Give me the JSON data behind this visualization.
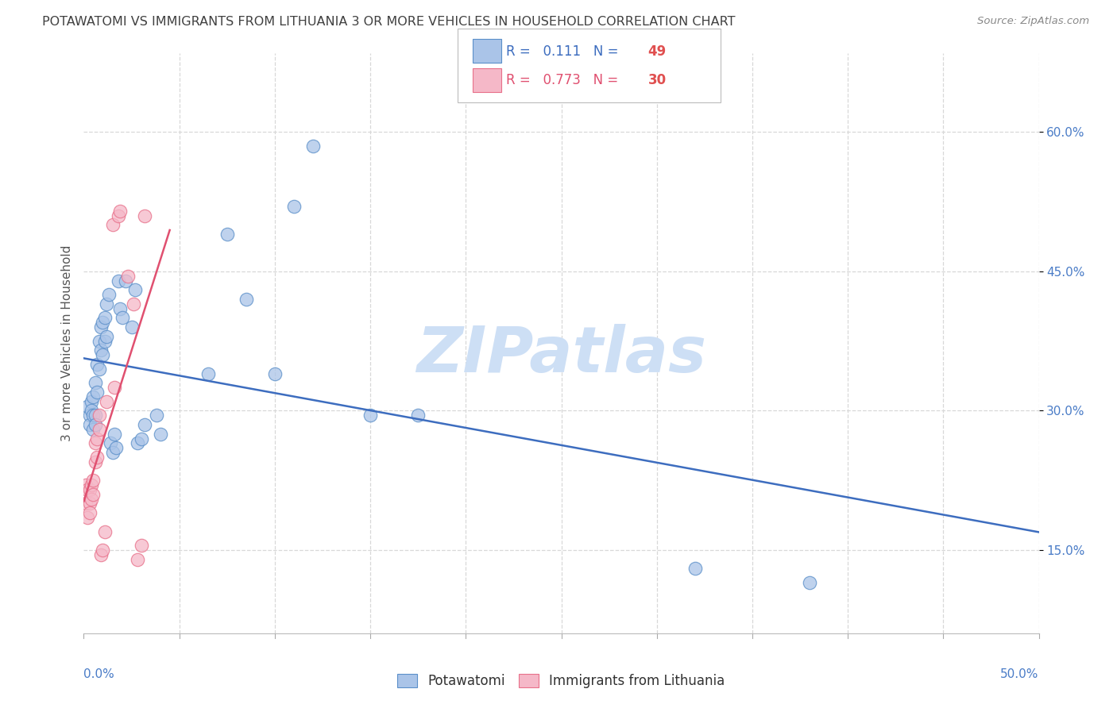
{
  "title": "POTAWATOMI VS IMMIGRANTS FROM LITHUANIA 3 OR MORE VEHICLES IN HOUSEHOLD CORRELATION CHART",
  "source": "Source: ZipAtlas.com",
  "ylabel": "3 or more Vehicles in Household",
  "ytick_labels": [
    "15.0%",
    "30.0%",
    "45.0%",
    "60.0%"
  ],
  "ytick_values": [
    0.15,
    0.3,
    0.45,
    0.6
  ],
  "xlim": [
    0.0,
    0.5
  ],
  "ylim": [
    0.06,
    0.685
  ],
  "legend_blue_R": "0.111",
  "legend_blue_N": "49",
  "legend_pink_R": "0.773",
  "legend_pink_N": "30",
  "blue_scatter_x": [
    0.002,
    0.003,
    0.003,
    0.004,
    0.004,
    0.005,
    0.005,
    0.005,
    0.006,
    0.006,
    0.006,
    0.007,
    0.007,
    0.008,
    0.008,
    0.009,
    0.009,
    0.01,
    0.01,
    0.011,
    0.011,
    0.012,
    0.012,
    0.013,
    0.014,
    0.015,
    0.016,
    0.017,
    0.018,
    0.019,
    0.02,
    0.022,
    0.025,
    0.027,
    0.028,
    0.03,
    0.032,
    0.038,
    0.04,
    0.065,
    0.075,
    0.085,
    0.1,
    0.11,
    0.12,
    0.15,
    0.175,
    0.32,
    0.38
  ],
  "blue_scatter_y": [
    0.305,
    0.295,
    0.285,
    0.31,
    0.3,
    0.315,
    0.295,
    0.28,
    0.33,
    0.295,
    0.285,
    0.35,
    0.32,
    0.375,
    0.345,
    0.39,
    0.365,
    0.395,
    0.36,
    0.375,
    0.4,
    0.415,
    0.38,
    0.425,
    0.265,
    0.255,
    0.275,
    0.26,
    0.44,
    0.41,
    0.4,
    0.44,
    0.39,
    0.43,
    0.265,
    0.27,
    0.285,
    0.295,
    0.275,
    0.34,
    0.49,
    0.42,
    0.34,
    0.52,
    0.585,
    0.295,
    0.295,
    0.13,
    0.115
  ],
  "pink_scatter_x": [
    0.001,
    0.001,
    0.002,
    0.002,
    0.003,
    0.003,
    0.003,
    0.004,
    0.004,
    0.005,
    0.005,
    0.006,
    0.006,
    0.007,
    0.007,
    0.008,
    0.008,
    0.009,
    0.01,
    0.011,
    0.012,
    0.015,
    0.016,
    0.018,
    0.019,
    0.023,
    0.026,
    0.028,
    0.03,
    0.032
  ],
  "pink_scatter_y": [
    0.22,
    0.2,
    0.215,
    0.185,
    0.2,
    0.215,
    0.19,
    0.205,
    0.22,
    0.225,
    0.21,
    0.265,
    0.245,
    0.27,
    0.25,
    0.295,
    0.28,
    0.145,
    0.15,
    0.17,
    0.31,
    0.5,
    0.325,
    0.51,
    0.515,
    0.445,
    0.415,
    0.14,
    0.155,
    0.51
  ],
  "blue_color": "#aac4e8",
  "pink_color": "#f5b8c8",
  "blue_edge_color": "#5b8fc9",
  "pink_edge_color": "#e8708a",
  "blue_line_color": "#3d6dbf",
  "pink_line_color": "#e05070",
  "watermark_text": "ZIPatlas",
  "watermark_color": "#cddff5",
  "background_color": "#ffffff",
  "grid_color": "#d8d8d8",
  "title_color": "#404040",
  "title_fontsize": 11.5,
  "source_color": "#888888",
  "tick_color": "#4a7cc7",
  "tick_fontsize": 11,
  "ylabel_color": "#555555",
  "ylabel_fontsize": 11
}
